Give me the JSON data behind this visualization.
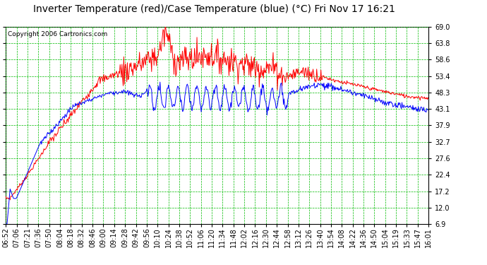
{
  "title": "Inverter Temperature (red)/Case Temperature (blue) (°C) Fri Nov 17 16:21",
  "copyright": "Copyright 2006 Cartronics.com",
  "yticks": [
    6.9,
    12.0,
    17.2,
    22.4,
    27.6,
    32.7,
    37.9,
    43.1,
    48.3,
    53.4,
    58.6,
    63.8,
    69.0
  ],
  "ylim": [
    6.9,
    69.0
  ],
  "bg_color": "#ffffff",
  "plot_bg_color": "#ffffff",
  "grid_color": "#00bb00",
  "red_color": "#ff0000",
  "blue_color": "#0000ff",
  "title_fontsize": 10,
  "copyright_fontsize": 6.5,
  "tick_fontsize": 7,
  "n_points": 700,
  "xtick_labels": [
    "06:52",
    "07:06",
    "07:21",
    "07:36",
    "07:50",
    "08:04",
    "08:18",
    "08:32",
    "08:46",
    "09:00",
    "09:14",
    "09:28",
    "09:42",
    "09:56",
    "10:10",
    "10:24",
    "10:38",
    "10:52",
    "11:06",
    "11:20",
    "11:34",
    "11:48",
    "12:02",
    "12:16",
    "12:30",
    "12:44",
    "12:58",
    "13:12",
    "13:26",
    "13:40",
    "13:54",
    "14:08",
    "14:22",
    "14:36",
    "14:50",
    "15:04",
    "15:19",
    "15:33",
    "15:47",
    "16:01"
  ]
}
